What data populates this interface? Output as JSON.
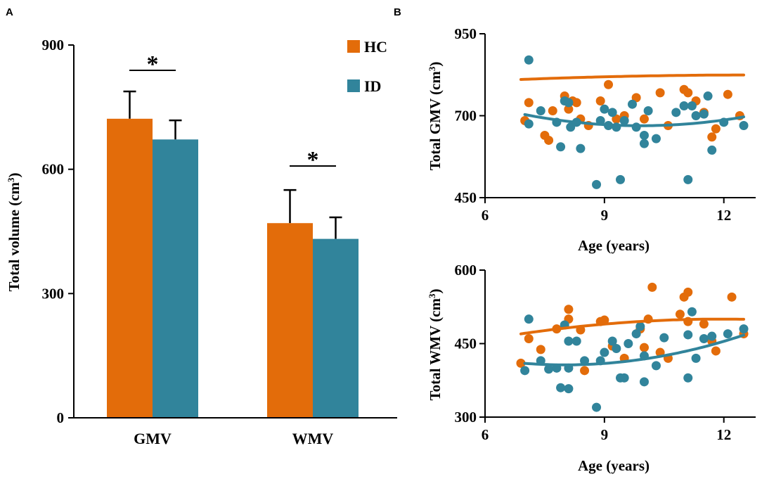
{
  "panels": {
    "a": "A",
    "b": "B"
  },
  "colors": {
    "hc": "#E36C0A",
    "id": "#31849B"
  },
  "chart_data": [
    {
      "type": "bar",
      "panel": "A",
      "categories": [
        "GMV",
        "WMV"
      ],
      "series": [
        {
          "name": "HC",
          "values": [
            722,
            470
          ],
          "errors": [
            66,
            80
          ]
        },
        {
          "name": "ID",
          "values": [
            672,
            432
          ],
          "errors": [
            46,
            52
          ]
        }
      ],
      "ylabel": "Total volume (cm³)",
      "ylabel_base": "Total volume (cm",
      "ylabel_sup": "3",
      "ylabel_end": ")",
      "ylim": [
        0,
        900
      ],
      "yticks": [
        "0",
        "300",
        "600",
        "900"
      ],
      "significance": [
        "*",
        "*"
      ],
      "legend": [
        "HC",
        "ID"
      ]
    },
    {
      "type": "scatter",
      "panel": "B-top",
      "xlabel": "Age (years)",
      "ylabel": "Total GMV (cm³)",
      "ylabel_base": "Total GMV (cm",
      "ylabel_sup": "3",
      "ylabel_end": ")",
      "xlim": [
        6,
        12.8
      ],
      "ylim": [
        450,
        950
      ],
      "xticks": [
        "6",
        "9",
        "12"
      ],
      "yticks": [
        "450",
        "700",
        "950"
      ],
      "series": [
        {
          "name": "HC",
          "points": [
            [
              7.0,
              685
            ],
            [
              7.1,
              740
            ],
            [
              7.5,
              640
            ],
            [
              7.6,
              625
            ],
            [
              7.7,
              715
            ],
            [
              8.0,
              760
            ],
            [
              8.1,
              720
            ],
            [
              8.2,
              745
            ],
            [
              8.3,
              740
            ],
            [
              8.4,
              690
            ],
            [
              8.6,
              670
            ],
            [
              8.9,
              745
            ],
            [
              9.1,
              795
            ],
            [
              9.3,
              690
            ],
            [
              9.5,
              700
            ],
            [
              9.8,
              755
            ],
            [
              10.0,
              690
            ],
            [
              10.4,
              770
            ],
            [
              10.6,
              670
            ],
            [
              11.0,
              780
            ],
            [
              11.1,
              770
            ],
            [
              11.3,
              745
            ],
            [
              11.5,
              710
            ],
            [
              11.7,
              635
            ],
            [
              11.8,
              660
            ],
            [
              12.1,
              765
            ],
            [
              12.4,
              700
            ]
          ],
          "fit": {
            "x": [
              6.9,
              12.5
            ],
            "coef": [
              -0.4,
              10.2,
              759.25
            ]
          }
        },
        {
          "name": "ID",
          "points": [
            [
              7.1,
              870
            ],
            [
              7.1,
              675
            ],
            [
              7.4,
              715
            ],
            [
              7.8,
              680
            ],
            [
              7.9,
              605
            ],
            [
              8.0,
              745
            ],
            [
              8.1,
              740
            ],
            [
              8.15,
              665
            ],
            [
              8.3,
              680
            ],
            [
              8.4,
              600
            ],
            [
              8.8,
              490
            ],
            [
              8.9,
              685
            ],
            [
              9.0,
              720
            ],
            [
              9.1,
              670
            ],
            [
              9.2,
              710
            ],
            [
              9.3,
              665
            ],
            [
              9.4,
              505
            ],
            [
              9.5,
              685
            ],
            [
              9.7,
              735
            ],
            [
              9.8,
              665
            ],
            [
              10.0,
              640
            ],
            [
              10.0,
              615
            ],
            [
              10.1,
              715
            ],
            [
              10.3,
              630
            ],
            [
              10.8,
              710
            ],
            [
              11.0,
              730
            ],
            [
              11.1,
              505
            ],
            [
              11.2,
              730
            ],
            [
              11.3,
              700
            ],
            [
              11.5,
              705
            ],
            [
              11.6,
              760
            ],
            [
              11.7,
              595
            ],
            [
              12.0,
              680
            ],
            [
              12.5,
              670
            ]
          ],
          "fit": {
            "x": [
              7.0,
              12.5
            ],
            "coef": [
              4.0,
              -79.3,
              1062.5
            ]
          }
        }
      ]
    },
    {
      "type": "scatter",
      "panel": "B-bottom",
      "xlabel": "Age (years)",
      "ylabel": "Total WMV (cm³)",
      "ylabel_base": "Total WMV (cm",
      "ylabel_sup": "3",
      "ylabel_end": ")",
      "xlim": [
        6,
        12.8
      ],
      "ylim": [
        300,
        600
      ],
      "xticks": [
        "6",
        "9",
        "12"
      ],
      "yticks": [
        "300",
        "450",
        "600"
      ],
      "series": [
        {
          "name": "HC",
          "points": [
            [
              6.9,
              410
            ],
            [
              7.1,
              460
            ],
            [
              7.4,
              438
            ],
            [
              7.8,
              480
            ],
            [
              8.1,
              520
            ],
            [
              8.1,
              500
            ],
            [
              8.4,
              478
            ],
            [
              8.5,
              395
            ],
            [
              8.9,
              495
            ],
            [
              9.0,
              498
            ],
            [
              9.2,
              445
            ],
            [
              9.5,
              420
            ],
            [
              9.9,
              480
            ],
            [
              10.0,
              442
            ],
            [
              10.1,
              500
            ],
            [
              10.2,
              565
            ],
            [
              10.4,
              432
            ],
            [
              10.6,
              420
            ],
            [
              10.9,
              510
            ],
            [
              11.0,
              545
            ],
            [
              11.1,
              555
            ],
            [
              11.1,
              495
            ],
            [
              11.5,
              490
            ],
            [
              11.7,
              455
            ],
            [
              11.8,
              435
            ],
            [
              12.2,
              545
            ],
            [
              12.5,
              470
            ]
          ],
          "fit": {
            "x": [
              6.9,
              12.5
            ],
            "coef": [
              -1.2,
              28.6,
              329.6
            ]
          }
        },
        {
          "name": "ID",
          "points": [
            [
              7.0,
              395
            ],
            [
              7.1,
              500
            ],
            [
              7.4,
              415
            ],
            [
              7.6,
              398
            ],
            [
              7.8,
              400
            ],
            [
              7.9,
              360
            ],
            [
              8.0,
              488
            ],
            [
              8.1,
              358
            ],
            [
              8.1,
              400
            ],
            [
              8.1,
              455
            ],
            [
              8.3,
              455
            ],
            [
              8.5,
              415
            ],
            [
              8.8,
              320
            ],
            [
              8.9,
              415
            ],
            [
              9.0,
              432
            ],
            [
              9.2,
              455
            ],
            [
              9.3,
              440
            ],
            [
              9.4,
              380
            ],
            [
              9.5,
              380
            ],
            [
              9.6,
              450
            ],
            [
              9.8,
              470
            ],
            [
              9.9,
              485
            ],
            [
              10.0,
              372
            ],
            [
              10.0,
              425
            ],
            [
              10.3,
              405
            ],
            [
              10.5,
              462
            ],
            [
              11.1,
              380
            ],
            [
              11.1,
              468
            ],
            [
              11.2,
              515
            ],
            [
              11.3,
              420
            ],
            [
              11.5,
              460
            ],
            [
              11.7,
              465
            ],
            [
              12.1,
              470
            ],
            [
              12.5,
              480
            ]
          ],
          "fit": {
            "x": [
              7.0,
              12.5
            ],
            "coef": [
              3.0,
              -48.0,
              598.6
            ]
          }
        }
      ]
    }
  ]
}
